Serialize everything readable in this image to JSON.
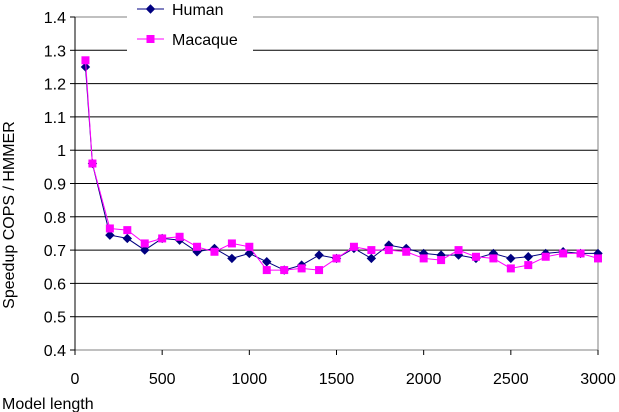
{
  "chart_data": {
    "type": "line",
    "xlabel": "Model length",
    "ylabel": "Speedup COPS / HMMER",
    "xlim": [
      0,
      3000
    ],
    "ylim": [
      0.4,
      1.4
    ],
    "x_ticks": [
      "0",
      "500",
      "1000",
      "1500",
      "2000",
      "2500",
      "3000"
    ],
    "y_ticks": [
      "0.4",
      "0.5",
      "0.6",
      "0.7",
      "0.8",
      "0.9",
      "1",
      "1.1",
      "1.2",
      "1.3",
      "1.4"
    ],
    "grid": "horizontal",
    "legend_position": "top-center",
    "series": [
      {
        "name": "Human",
        "color": "#000080",
        "marker": "diamond",
        "x": [
          60,
          100,
          200,
          300,
          400,
          500,
          600,
          700,
          800,
          900,
          1000,
          1100,
          1200,
          1300,
          1400,
          1500,
          1600,
          1700,
          1800,
          1900,
          2000,
          2100,
          2200,
          2300,
          2400,
          2500,
          2600,
          2700,
          2800,
          2900,
          3000
        ],
        "y": [
          1.25,
          0.96,
          0.745,
          0.735,
          0.7,
          0.735,
          0.73,
          0.695,
          0.705,
          0.675,
          0.69,
          0.665,
          0.64,
          0.655,
          0.685,
          0.675,
          0.705,
          0.675,
          0.715,
          0.705,
          0.69,
          0.685,
          0.685,
          0.675,
          0.69,
          0.675,
          0.68,
          0.69,
          0.695,
          0.69,
          0.69
        ]
      },
      {
        "name": "Macaque",
        "color": "#ff00ff",
        "marker": "square",
        "x": [
          60,
          100,
          200,
          300,
          400,
          500,
          600,
          700,
          800,
          900,
          1000,
          1100,
          1200,
          1300,
          1400,
          1500,
          1600,
          1700,
          1800,
          1900,
          2000,
          2100,
          2200,
          2300,
          2400,
          2500,
          2600,
          2700,
          2800,
          2900,
          3000
        ],
        "y": [
          1.27,
          0.96,
          0.765,
          0.76,
          0.72,
          0.735,
          0.74,
          0.71,
          0.695,
          0.72,
          0.71,
          0.64,
          0.64,
          0.645,
          0.64,
          0.675,
          0.71,
          0.7,
          0.7,
          0.695,
          0.675,
          0.67,
          0.7,
          0.68,
          0.675,
          0.645,
          0.655,
          0.68,
          0.69,
          0.69,
          0.675
        ]
      }
    ]
  }
}
